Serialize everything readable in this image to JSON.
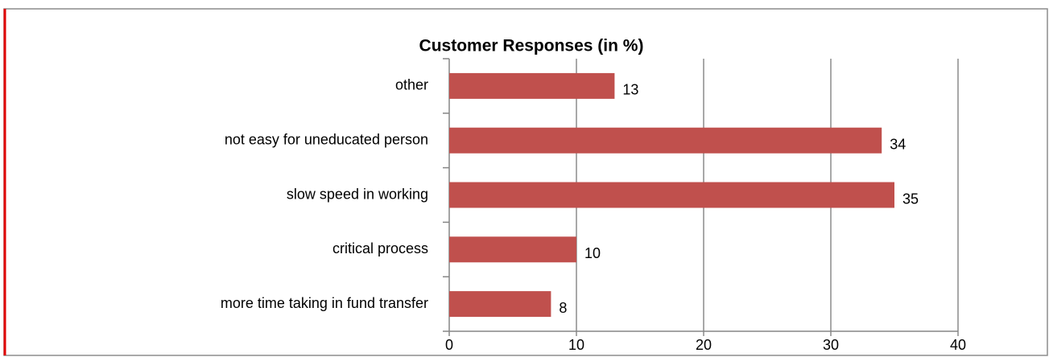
{
  "chart_data": {
    "type": "bar",
    "orientation": "horizontal",
    "title": "Customer Responses (in %)",
    "categories": [
      "other",
      "not easy for uneducated person",
      "slow speed in working",
      "critical process",
      "more time taking in fund transfer"
    ],
    "values": [
      13,
      34,
      35,
      10,
      8
    ],
    "color": "#c0504d",
    "xlim": [
      0,
      40
    ],
    "xticks": [
      0,
      10,
      20,
      30,
      40
    ],
    "grid": true
  }
}
